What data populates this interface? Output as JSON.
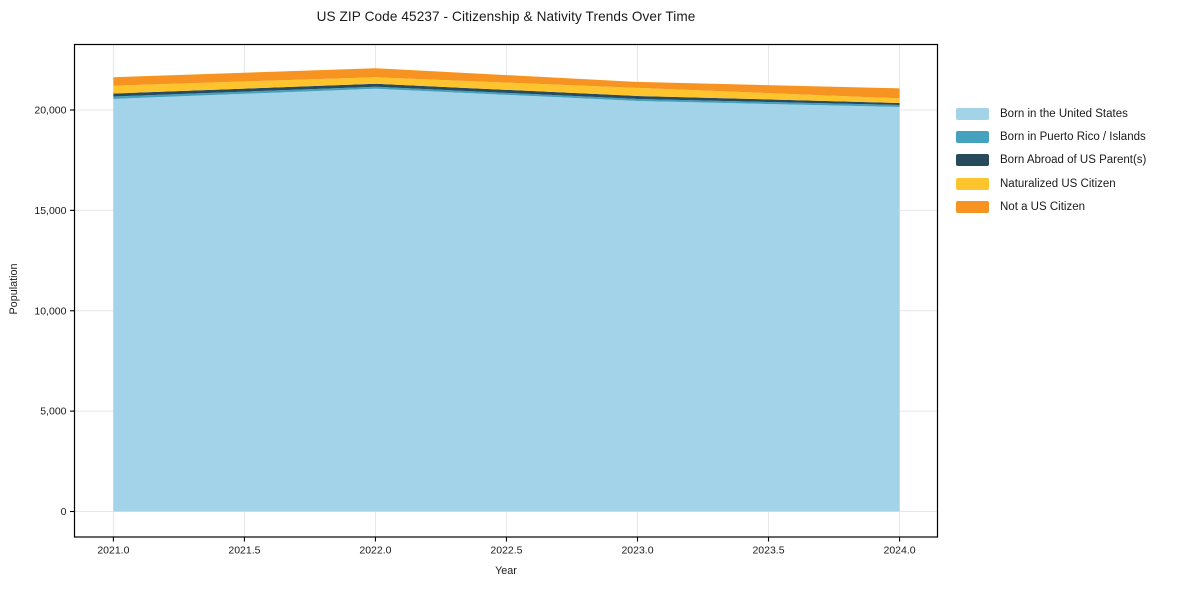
{
  "chart_data": {
    "type": "area",
    "stacked": true,
    "title": "US ZIP Code 45237 - Citizenship & Nativity Trends Over Time",
    "xlabel": "Year",
    "ylabel": "Population",
    "x": [
      2021,
      2022,
      2023,
      2024
    ],
    "series": [
      {
        "name": "Born in the United States",
        "color": "#A3D3E8",
        "values": [
          20550,
          21060,
          20450,
          20150
        ]
      },
      {
        "name": "Born in Puerto Rico / Islands",
        "color": "#45A2BF",
        "values": [
          120,
          100,
          100,
          100
        ]
      },
      {
        "name": "Born Abroad of US Parent(s)",
        "color": "#274B5D",
        "values": [
          150,
          150,
          150,
          100
        ]
      },
      {
        "name": "Naturalized US Citizen",
        "color": "#FDC42D",
        "values": [
          390,
          320,
          400,
          230
        ]
      },
      {
        "name": "Not a US Citizen",
        "color": "#F79421",
        "values": [
          420,
          450,
          300,
          500
        ]
      }
    ],
    "totals": [
      21630,
      22080,
      21400,
      21080
    ],
    "x_ticks": {
      "values": [
        2021.0,
        2021.5,
        2022.0,
        2022.5,
        2023.0,
        2023.5,
        2024.0
      ],
      "labels": [
        "2021.0",
        "2021.5",
        "2022.0",
        "2022.5",
        "2023.0",
        "2023.5",
        "2024.0"
      ]
    },
    "y_ticks": {
      "values": [
        0,
        5000,
        10000,
        15000,
        20000
      ],
      "labels": [
        "0",
        "5,000",
        "10,000",
        "15,000",
        "20,000"
      ]
    },
    "xlim": [
      2020.85,
      2024.15
    ],
    "ylim": [
      -1270,
      23265
    ],
    "grid": true,
    "legend_position": "right",
    "background": "#FFFFFF",
    "text_color": "#1a1a1a",
    "spine_color": "#000000",
    "grid_color": "#E7E7E7"
  }
}
